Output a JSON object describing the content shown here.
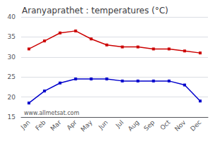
{
  "chart_data": {
    "type": "line",
    "title": "Aranyaprathet : temperatures (°C)",
    "categories": [
      "Jan",
      "Feb",
      "Mar",
      "Apr",
      "May",
      "Jun",
      "Jul",
      "Aug",
      "Sep",
      "Oct",
      "Nov",
      "Dec"
    ],
    "series": [
      {
        "color": "#cc0000",
        "marker": "square",
        "values": [
          32.0,
          34.0,
          36.0,
          36.5,
          34.5,
          33.0,
          32.5,
          32.5,
          32.0,
          32.0,
          31.5,
          31.0
        ]
      },
      {
        "color": "#0000cc",
        "marker": "square",
        "values": [
          18.5,
          21.5,
          23.5,
          24.5,
          24.5,
          24.5,
          24.0,
          24.0,
          24.0,
          24.0,
          23.0,
          19.0
        ]
      }
    ],
    "ylim": [
      15,
      40
    ],
    "yticks": [
      15,
      20,
      25,
      30,
      35,
      40
    ],
    "grid": true,
    "annotations": [
      "www.allmetsat.com"
    ]
  }
}
